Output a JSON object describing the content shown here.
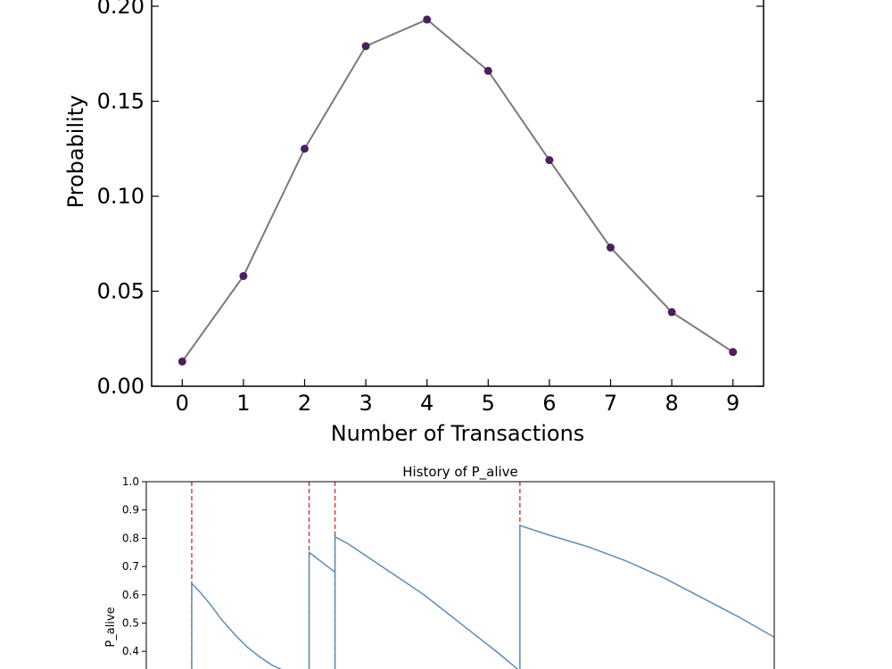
{
  "chart_data": [
    {
      "type": "line",
      "title": "",
      "xlabel": "Number of Transactions",
      "ylabel": "Probability",
      "x": [
        0,
        1,
        2,
        3,
        4,
        5,
        6,
        7,
        8,
        9
      ],
      "values": [
        0.013,
        0.058,
        0.125,
        0.179,
        0.193,
        0.166,
        0.119,
        0.073,
        0.039,
        0.018
      ],
      "xlim": [
        -0.5,
        9.5
      ],
      "ylim": [
        0.0,
        0.2
      ],
      "xticks": [
        "0",
        "1",
        "2",
        "3",
        "4",
        "5",
        "6",
        "7",
        "8",
        "9"
      ],
      "yticks": [
        "0.00",
        "0.05",
        "0.10",
        "0.15",
        "0.20"
      ],
      "grid": false,
      "colors": {
        "line": "#7a7a7a",
        "marker": "#4b1f5e"
      }
    },
    {
      "type": "line",
      "title": "History of P_alive",
      "xlabel": "",
      "ylabel": "P_alive",
      "ylim": [
        0.0,
        1.0
      ],
      "yticks": [
        "0.4",
        "0.5",
        "0.6",
        "0.7",
        "0.8",
        "0.9",
        "1.0"
      ],
      "grid": false,
      "purchase_events": [
        7.2,
        25.8,
        29.9,
        59.2
      ],
      "series": [
        {
          "x": [
            7.2,
            8.5,
            10,
            12,
            14,
            16,
            18,
            20,
            22,
            24,
            25.8
          ],
          "y": [
            0.64,
            0.61,
            0.57,
            0.51,
            0.46,
            0.415,
            0.38,
            0.35,
            0.33,
            0.31,
            0.3
          ]
        },
        {
          "x": [
            25.8,
            29.9
          ],
          "y": [
            0.75,
            0.68
          ]
        },
        {
          "x": [
            29.9,
            32,
            36,
            40,
            44,
            48,
            52,
            56,
            59.2
          ],
          "y": [
            0.805,
            0.78,
            0.72,
            0.66,
            0.6,
            0.53,
            0.46,
            0.39,
            0.33
          ]
        },
        {
          "x": [
            59.2,
            64,
            70,
            76,
            82,
            88,
            94,
            99.5
          ],
          "y": [
            0.845,
            0.81,
            0.77,
            0.72,
            0.66,
            0.59,
            0.52,
            0.45
          ]
        }
      ],
      "xlim": [
        0,
        99.5
      ],
      "colors": {
        "line": "#5b8db8",
        "event": "#d62728"
      }
    }
  ]
}
